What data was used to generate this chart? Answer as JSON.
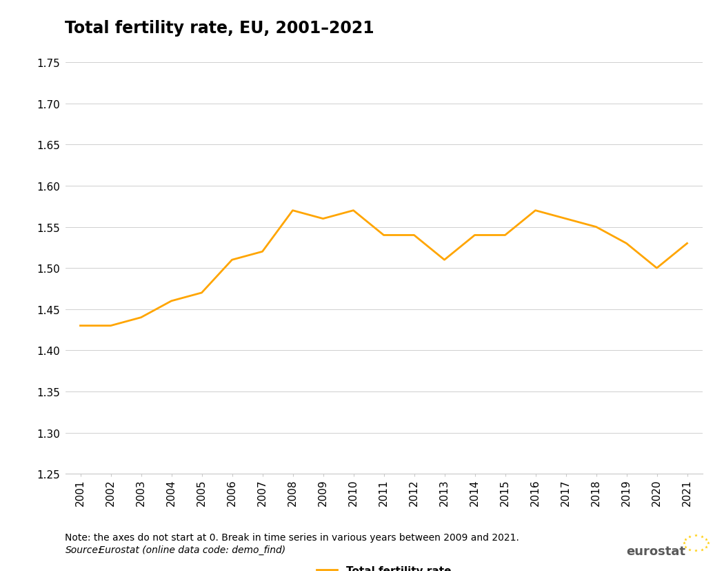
{
  "title": "Total fertility rate, EU, 2001–2021",
  "years": [
    2001,
    2002,
    2003,
    2004,
    2005,
    2006,
    2007,
    2008,
    2009,
    2010,
    2011,
    2012,
    2013,
    2014,
    2015,
    2016,
    2017,
    2018,
    2019,
    2020,
    2021
  ],
  "values": [
    1.43,
    1.43,
    1.44,
    1.46,
    1.47,
    1.51,
    1.52,
    1.57,
    1.56,
    1.57,
    1.54,
    1.54,
    1.51,
    1.54,
    1.54,
    1.57,
    1.56,
    1.55,
    1.53,
    1.5,
    1.53
  ],
  "line_color": "#FFA500",
  "legend_label": "Total fertility rate",
  "ylim": [
    1.25,
    1.75
  ],
  "yticks": [
    1.25,
    1.3,
    1.35,
    1.4,
    1.45,
    1.5,
    1.55,
    1.6,
    1.65,
    1.7,
    1.75
  ],
  "background_color": "#ffffff",
  "grid_color": "#c8c8c8",
  "title_fontsize": 17,
  "axis_tick_fontsize": 11,
  "legend_fontsize": 11,
  "note_fontsize": 10,
  "note_text": "Note: the axes do not start at 0. Break in time series in various years between 2009 and 2021.",
  "source_label": "Source:",
  "source_rest": " Eurostat (online data code: demo_find)",
  "eurostat_color": "#595959",
  "eu_flag_blue": "#003399",
  "eu_star_yellow": "#FFCC00"
}
